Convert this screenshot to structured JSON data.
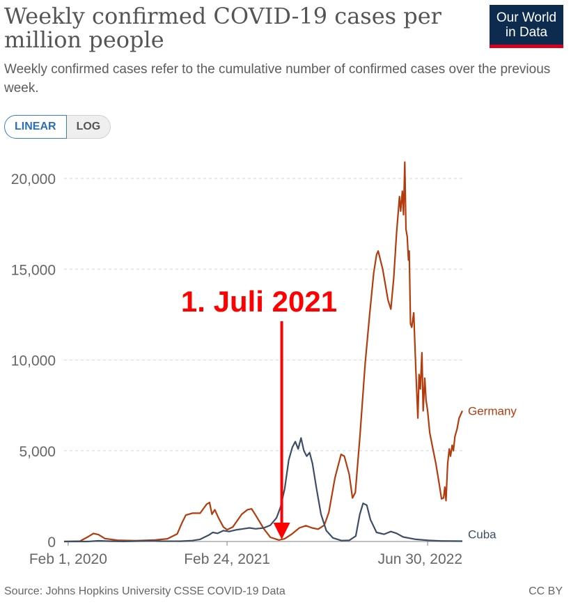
{
  "header": {
    "title": "Weekly confirmed COVID-19 cases per million people",
    "subtitle": "Weekly confirmed cases refer to the cumulative number of confirmed cases over the previous week.",
    "logo_line1": "Our World",
    "logo_line2": "in Data"
  },
  "controls": {
    "linear_label": "LINEAR",
    "log_label": "LOG",
    "selected": "LINEAR"
  },
  "footer": {
    "source": "Source: Johns Hopkins University CSSE COVID-19 Data",
    "license": "CC BY"
  },
  "annotation": {
    "text": "1. Juli 2021",
    "date": "2021-07-01",
    "color": "#ff0000"
  },
  "chart_data": {
    "type": "line",
    "title": "Weekly confirmed COVID-19 cases per million people",
    "xlabel": "",
    "ylabel": "",
    "x_range": [
      "2020-01-22",
      "2022-09-23"
    ],
    "ylim": [
      0,
      21000
    ],
    "y_ticks": [
      0,
      5000,
      10000,
      15000,
      20000
    ],
    "y_tick_labels": [
      "0",
      "5,000",
      "10,000",
      "15,000",
      "20,000"
    ],
    "x_ticks": [
      "2020-02-01",
      "2021-02-24",
      "2022-06-30"
    ],
    "x_tick_labels": [
      "Feb 1, 2020",
      "Feb 24, 2021",
      "Jun 30, 2022"
    ],
    "grid": "horizontal dashed",
    "legend": "inline labels at line ends",
    "series": [
      {
        "name": "Germany",
        "color": "#b33c0e",
        "points": [
          [
            "2020-01-22",
            0
          ],
          [
            "2020-03-01",
            20
          ],
          [
            "2020-03-20",
            250
          ],
          [
            "2020-04-03",
            440
          ],
          [
            "2020-04-15",
            380
          ],
          [
            "2020-05-01",
            160
          ],
          [
            "2020-06-01",
            70
          ],
          [
            "2020-07-15",
            45
          ],
          [
            "2020-09-01",
            80
          ],
          [
            "2020-10-01",
            150
          ],
          [
            "2020-10-25",
            420
          ],
          [
            "2020-11-05",
            1000
          ],
          [
            "2020-11-15",
            1450
          ],
          [
            "2020-12-01",
            1560
          ],
          [
            "2020-12-20",
            1560
          ],
          [
            "2021-01-05",
            2050
          ],
          [
            "2021-01-12",
            2150
          ],
          [
            "2021-01-18",
            1500
          ],
          [
            "2021-01-25",
            1750
          ],
          [
            "2021-02-03",
            1300
          ],
          [
            "2021-02-15",
            800
          ],
          [
            "2021-02-24",
            650
          ],
          [
            "2021-03-10",
            800
          ],
          [
            "2021-04-01",
            1500
          ],
          [
            "2021-04-15",
            1750
          ],
          [
            "2021-04-25",
            1800
          ],
          [
            "2021-05-05",
            1450
          ],
          [
            "2021-05-25",
            700
          ],
          [
            "2021-06-10",
            230
          ],
          [
            "2021-07-01",
            80
          ],
          [
            "2021-07-15",
            150
          ],
          [
            "2021-08-01",
            400
          ],
          [
            "2021-08-20",
            750
          ],
          [
            "2021-09-05",
            870
          ],
          [
            "2021-09-20",
            750
          ],
          [
            "2021-10-05",
            680
          ],
          [
            "2021-10-20",
            900
          ],
          [
            "2021-10-31",
            1600
          ],
          [
            "2021-11-15",
            3500
          ],
          [
            "2021-11-30",
            4800
          ],
          [
            "2021-12-08",
            4700
          ],
          [
            "2021-12-20",
            3700
          ],
          [
            "2021-12-28",
            2400
          ],
          [
            "2022-01-04",
            2700
          ],
          [
            "2022-01-15",
            5700
          ],
          [
            "2022-01-28",
            9800
          ],
          [
            "2022-02-08",
            12500
          ],
          [
            "2022-02-18",
            14800
          ],
          [
            "2022-02-25",
            15800
          ],
          [
            "2022-03-01",
            16000
          ],
          [
            "2022-03-12",
            15000
          ],
          [
            "2022-03-25",
            13300
          ],
          [
            "2022-04-01",
            12800
          ],
          [
            "2022-04-08",
            14500
          ],
          [
            "2022-04-15",
            17000
          ],
          [
            "2022-04-22",
            19000
          ],
          [
            "2022-04-25",
            18200
          ],
          [
            "2022-04-29",
            19300
          ],
          [
            "2022-05-02",
            18000
          ],
          [
            "2022-05-05",
            20900
          ],
          [
            "2022-05-08",
            17200
          ],
          [
            "2022-05-11",
            16800
          ],
          [
            "2022-05-14",
            15500
          ],
          [
            "2022-05-16",
            16000
          ],
          [
            "2022-05-19",
            12000
          ],
          [
            "2022-05-22",
            11800
          ],
          [
            "2022-05-27",
            12600
          ],
          [
            "2022-06-01",
            9500
          ],
          [
            "2022-06-06",
            6800
          ],
          [
            "2022-06-09",
            9200
          ],
          [
            "2022-06-12",
            8400
          ],
          [
            "2022-06-16",
            10400
          ],
          [
            "2022-06-19",
            7200
          ],
          [
            "2022-06-23",
            9000
          ],
          [
            "2022-06-26",
            7800
          ],
          [
            "2022-06-30",
            7200
          ],
          [
            "2022-07-05",
            6000
          ],
          [
            "2022-07-12",
            5200
          ],
          [
            "2022-07-20",
            4300
          ],
          [
            "2022-07-28",
            3200
          ],
          [
            "2022-08-03",
            2350
          ],
          [
            "2022-08-08",
            2400
          ],
          [
            "2022-08-11",
            3000
          ],
          [
            "2022-08-14",
            2250
          ],
          [
            "2022-08-18",
            4300
          ],
          [
            "2022-08-22",
            5100
          ],
          [
            "2022-08-25",
            4700
          ],
          [
            "2022-08-29",
            5300
          ],
          [
            "2022-09-01",
            5000
          ],
          [
            "2022-09-05",
            5800
          ],
          [
            "2022-09-10",
            6200
          ],
          [
            "2022-09-15",
            6800
          ],
          [
            "2022-09-19",
            7000
          ],
          [
            "2022-09-23",
            7200
          ]
        ]
      },
      {
        "name": "Cuba",
        "color": "#3c4e66",
        "points": [
          [
            "2020-01-22",
            0
          ],
          [
            "2020-03-20",
            0
          ],
          [
            "2020-04-15",
            40
          ],
          [
            "2020-05-10",
            20
          ],
          [
            "2020-06-15",
            5
          ],
          [
            "2020-08-25",
            40
          ],
          [
            "2020-09-15",
            20
          ],
          [
            "2020-11-01",
            15
          ],
          [
            "2020-12-01",
            50
          ],
          [
            "2020-12-20",
            120
          ],
          [
            "2021-01-10",
            350
          ],
          [
            "2021-01-20",
            500
          ],
          [
            "2021-02-01",
            450
          ],
          [
            "2021-02-15",
            600
          ],
          [
            "2021-03-01",
            550
          ],
          [
            "2021-03-20",
            650
          ],
          [
            "2021-04-05",
            700
          ],
          [
            "2021-04-20",
            750
          ],
          [
            "2021-05-05",
            700
          ],
          [
            "2021-05-25",
            750
          ],
          [
            "2021-06-10",
            900
          ],
          [
            "2021-06-25",
            1300
          ],
          [
            "2021-07-05",
            1900
          ],
          [
            "2021-07-15",
            2900
          ],
          [
            "2021-07-25",
            4500
          ],
          [
            "2021-08-03",
            5200
          ],
          [
            "2021-08-10",
            5500
          ],
          [
            "2021-08-17",
            5100
          ],
          [
            "2021-08-24",
            5700
          ],
          [
            "2021-08-31",
            5000
          ],
          [
            "2021-09-07",
            4700
          ],
          [
            "2021-09-14",
            4900
          ],
          [
            "2021-09-21",
            4300
          ],
          [
            "2021-10-01",
            2900
          ],
          [
            "2021-10-12",
            1500
          ],
          [
            "2021-10-25",
            600
          ],
          [
            "2021-11-10",
            200
          ],
          [
            "2021-12-01",
            50
          ],
          [
            "2021-12-20",
            60
          ],
          [
            "2022-01-05",
            300
          ],
          [
            "2022-01-15",
            1500
          ],
          [
            "2022-01-23",
            2100
          ],
          [
            "2022-02-01",
            2000
          ],
          [
            "2022-02-10",
            1200
          ],
          [
            "2022-02-25",
            500
          ],
          [
            "2022-03-15",
            400
          ],
          [
            "2022-04-01",
            550
          ],
          [
            "2022-04-15",
            450
          ],
          [
            "2022-05-01",
            250
          ],
          [
            "2022-06-01",
            120
          ],
          [
            "2022-07-01",
            60
          ],
          [
            "2022-08-01",
            30
          ],
          [
            "2022-09-23",
            20
          ]
        ]
      }
    ]
  }
}
